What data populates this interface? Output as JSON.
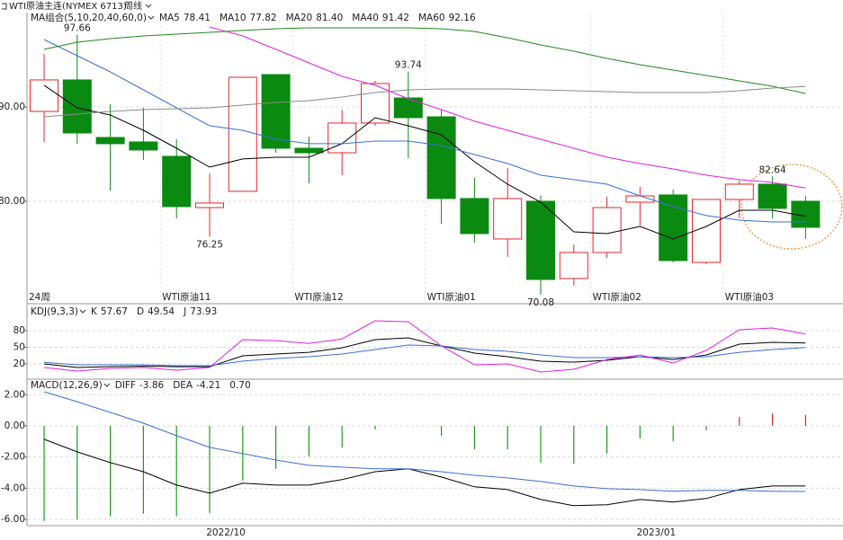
{
  "header": {
    "title": "WTI原油主连(NYMEX 6713)",
    "period": "周线"
  },
  "chart_data": [
    {
      "type": "candlestick",
      "legend_title": "MA组合(5,10,20,40,60,0)",
      "open": [
        89.52,
        92.86,
        86.76,
        86.29,
        84.76,
        79.33,
        81.05,
        93.43,
        85.62,
        85.14,
        88.29,
        90.95,
        88.95,
        80.29,
        76.0,
        80.0,
        71.81,
        74.57,
        79.9,
        80.67,
        73.52,
        80.19,
        81.81,
        80.0
      ],
      "high": [
        95.6,
        97.66,
        90.29,
        89.9,
        86.57,
        82.95,
        93.2,
        93.43,
        86.86,
        89.71,
        92.76,
        93.74,
        89.71,
        82.48,
        83.52,
        80.6,
        75.4,
        80.48,
        81.52,
        81.24,
        80.19,
        82.19,
        82.64,
        80.57
      ],
      "low": [
        86.3,
        86.1,
        81.14,
        84.38,
        78.19,
        76.25,
        81.05,
        85.14,
        81.9,
        82.76,
        88.0,
        84.57,
        77.62,
        75.62,
        74.1,
        70.08,
        71.05,
        74.0,
        77.43,
        73.52,
        73.33,
        78.2,
        78.2,
        76.0
      ],
      "close": [
        92.86,
        87.24,
        86.1,
        85.43,
        79.43,
        79.81,
        93.14,
        85.62,
        85.14,
        88.29,
        92.48,
        88.86,
        80.29,
        76.57,
        80.29,
        71.71,
        74.57,
        79.33,
        80.57,
        73.71,
        80.19,
        81.81,
        79.24,
        77.24
      ],
      "high_labels": [
        null,
        "97.66",
        null,
        null,
        null,
        null,
        null,
        null,
        null,
        null,
        null,
        "93.74",
        null,
        null,
        null,
        null,
        null,
        null,
        null,
        null,
        null,
        null,
        "82.64",
        null
      ],
      "low_labels": [
        null,
        null,
        null,
        null,
        null,
        "76.25",
        null,
        null,
        null,
        null,
        null,
        null,
        null,
        null,
        null,
        "70.08",
        null,
        null,
        null,
        null,
        null,
        null,
        null,
        null
      ],
      "up_color": "#e8262b",
      "down_color": "#0b8a12",
      "series": [
        {
          "name": "MA5",
          "color": "#000000",
          "last_label": "78.41",
          "values": [
            92.29,
            89.9,
            89.14,
            87.52,
            85.62,
            83.62,
            84.48,
            84.67,
            84.67,
            86.1,
            88.86,
            88.0,
            87.05,
            84.19,
            81.81,
            79.9,
            76.76,
            76.57,
            77.33,
            76.0,
            77.33,
            79.05,
            79.05,
            78.41
          ]
        },
        {
          "name": "MA10",
          "color": "#3a6fd8",
          "last_label": "77.82",
          "values": [
            97.14,
            95.43,
            93.71,
            91.81,
            89.9,
            88.0,
            87.52,
            86.57,
            86.1,
            86.1,
            86.38,
            86.38,
            85.9,
            84.95,
            84.0,
            82.76,
            82.29,
            81.81,
            80.57,
            79.43,
            78.48,
            78.0,
            77.81,
            77.82
          ]
        },
        {
          "name": "MA20",
          "color": "#e020e0",
          "last_label": "81.40",
          "values": [
            null,
            null,
            null,
            null,
            null,
            98.48,
            97.52,
            96.1,
            94.67,
            93.24,
            92.29,
            90.86,
            89.71,
            88.48,
            87.52,
            86.57,
            85.62,
            84.67,
            84.0,
            83.43,
            82.76,
            82.29,
            82.0,
            81.4
          ]
        },
        {
          "name": "MA40",
          "color": "#1f8a1f",
          "last_label": "91.42",
          "values": [
            96.1,
            96.86,
            97.24,
            97.52,
            97.71,
            97.9,
            98.1,
            98.29,
            98.38,
            98.38,
            98.38,
            98.38,
            98.29,
            98.0,
            97.33,
            96.57,
            95.9,
            95.14,
            94.48,
            93.9,
            93.33,
            92.76,
            92.19,
            91.42
          ]
        },
        {
          "name": "MA60",
          "color": "#8a8a8a",
          "last_label": "92.16",
          "values": [
            88.95,
            89.24,
            89.52,
            89.71,
            89.81,
            89.9,
            90.19,
            90.48,
            90.67,
            91.05,
            91.52,
            91.81,
            91.9,
            91.9,
            91.9,
            91.81,
            91.71,
            91.62,
            91.52,
            91.52,
            91.52,
            91.71,
            92.0,
            92.16
          ]
        }
      ],
      "ylim": [
        69.14,
        100
      ],
      "yticks": [
        {
          "value": 90,
          "label": "90.00"
        },
        {
          "value": 80,
          "label": "80.00"
        }
      ],
      "grid": true,
      "period_count": "24周",
      "period_labels": [
        null,
        null,
        null,
        null,
        "WTI原油11",
        null,
        null,
        null,
        "WTI原油12",
        null,
        null,
        null,
        "WTI原油01",
        null,
        null,
        null,
        null,
        "WTI原油02",
        null,
        null,
        null,
        "WTI原油03",
        null,
        null
      ]
    },
    {
      "type": "line",
      "legend_title": "KDJ(9,3,3)",
      "series": [
        {
          "name": "K",
          "color": "#000000",
          "last_label": "57.67",
          "values": [
            20,
            13.5,
            15,
            16,
            15,
            15,
            34.6,
            37.8,
            41,
            49,
            63.8,
            67,
            52.4,
            39.5,
            33,
            24.9,
            23.2,
            26.5,
            33,
            28,
            36,
            55.7,
            59,
            57.67
          ]
        },
        {
          "name": "D",
          "color": "#3a6fd8",
          "last_label": "49.54",
          "values": [
            23,
            18.4,
            18.4,
            18.4,
            16.8,
            16.8,
            25,
            29.7,
            33,
            37.8,
            46,
            54,
            52.4,
            46,
            42.7,
            36.2,
            31.4,
            31.4,
            33,
            31.4,
            33,
            41,
            46,
            49.54
          ]
        },
        {
          "name": "J",
          "color": "#e020e0",
          "last_label": "73.93",
          "values": [
            13.5,
            7,
            11.9,
            13.5,
            8.6,
            13.5,
            63.8,
            62,
            57,
            65,
            97.8,
            96,
            52.4,
            18.4,
            20,
            5.4,
            10.3,
            28,
            36,
            21.6,
            44.3,
            81.6,
            84.9,
            73.93
          ]
        }
      ],
      "ylim": [
        -4.3,
        125.4
      ],
      "yticks": [
        80,
        50,
        20
      ],
      "grid": true
    },
    {
      "type": "macd",
      "legend_title": "MACD(12,26,9)",
      "series": [
        {
          "name": "DIFF",
          "color": "#000000",
          "last_label": "-3.86",
          "values": [
            -0.86,
            -1.67,
            -2.36,
            -2.94,
            -3.8,
            -4.32,
            -3.68,
            -3.8,
            -3.8,
            -3.45,
            -2.94,
            -2.76,
            -3.28,
            -3.91,
            -4.09,
            -4.72,
            -5.12,
            -5.06,
            -4.72,
            -4.89,
            -4.66,
            -4.09,
            -3.86,
            -3.86
          ]
        },
        {
          "name": "DEA",
          "color": "#3a6fd8",
          "last_label": "-4.21",
          "values": [
            2.19,
            1.55,
            0.86,
            0.17,
            -0.63,
            -1.38,
            -1.78,
            -2.19,
            -2.53,
            -2.65,
            -2.76,
            -2.76,
            -2.94,
            -3.17,
            -3.34,
            -3.57,
            -3.86,
            -4.03,
            -4.09,
            -4.2,
            -4.14,
            -4.14,
            -4.2,
            -4.21
          ]
        }
      ],
      "histogram": {
        "last_label": "0.70",
        "up_color": "#e8262b",
        "down_color": "#1f9a1f",
        "values": [
          -6.1,
          -6.0,
          -5.8,
          -5.64,
          -5.8,
          -5.6,
          -3.5,
          -2.76,
          -1.96,
          -1.38,
          -0.23,
          0.02,
          -0.63,
          -1.5,
          -1.5,
          -2.36,
          -2.42,
          -1.78,
          -0.8,
          -0.98,
          -0.29,
          0.58,
          0.8,
          0.7
        ]
      },
      "ylim": [
        -6.4,
        2.88
      ],
      "yticks": [
        {
          "value": 2,
          "label": "2.00"
        },
        {
          "value": 0,
          "label": "0.00"
        },
        {
          "value": -2,
          "label": "-2.00"
        },
        {
          "value": -4,
          "label": "-4.00"
        },
        {
          "value": -6,
          "label": "-6.00"
        }
      ],
      "grid": true,
      "x_labels": [
        null,
        null,
        null,
        null,
        null,
        "2022/10",
        null,
        null,
        null,
        null,
        null,
        null,
        null,
        null,
        null,
        null,
        null,
        null,
        "2023/01",
        null,
        null,
        null,
        null,
        null
      ]
    }
  ]
}
